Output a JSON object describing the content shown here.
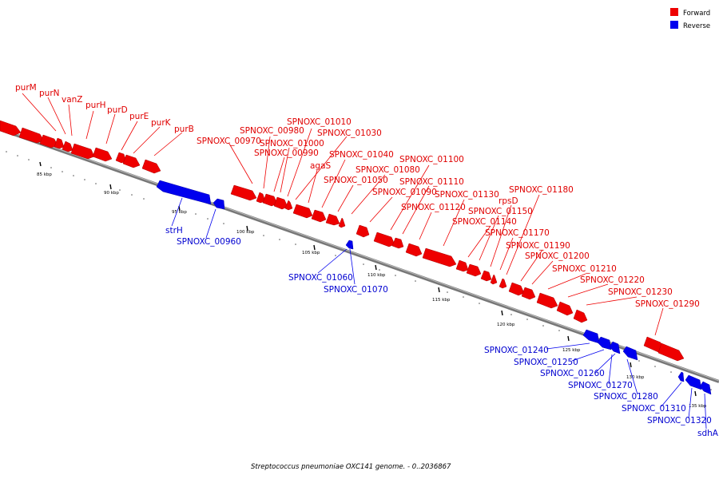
{
  "legend": {
    "forward_label": "Forward",
    "reverse_label": "Reverse",
    "forward_color": "#ee0000",
    "reverse_color": "#0000ee"
  },
  "caption": "Streptococcus pneumoniae OXC141 genome. - 0..2036867",
  "scale_labels": [
    "85 kbp",
    "90 kbp",
    "95 kbp",
    "100 kbp",
    "105 kbp",
    "110 kbp",
    "115 kbp",
    "120 kbp",
    "125 kbp",
    "130 kbp",
    "135 kbp"
  ],
  "forward_genes": [
    "purM",
    "purN",
    "vanZ",
    "purH",
    "purD",
    "purE",
    "purK",
    "purB",
    "SPNOXC_00970",
    "SPNOXC_00980",
    "SPNOXC_00990",
    "SPNOXC_01000",
    "SPNOXC_01010",
    "SPNOXC_01030",
    "agaS",
    "SPNOXC_01040",
    "SPNOXC_01050",
    "SPNOXC_01080",
    "SPNOXC_01090",
    "SPNOXC_01100",
    "SPNOXC_01110",
    "SPNOXC_01120",
    "SPNOXC_01130",
    "SPNOXC_01140",
    "SPNOXC_01150",
    "rpsD",
    "SPNOXC_01170",
    "SPNOXC_01180",
    "SPNOXC_01190",
    "SPNOXC_01200",
    "SPNOXC_01210",
    "SPNOXC_01220",
    "SPNOXC_01230",
    "SPNOXC_01290"
  ],
  "reverse_genes": [
    "strH",
    "SPNOXC_00960",
    "SPNOXC_01060",
    "SPNOXC_01070",
    "SPNOXC_01240",
    "SPNOXC_01250",
    "SPNOXC_01260",
    "SPNOXC_01270",
    "SPNOXC_01280",
    "SPNOXC_01310",
    "SPNOXC_01320",
    "sdhA"
  ]
}
